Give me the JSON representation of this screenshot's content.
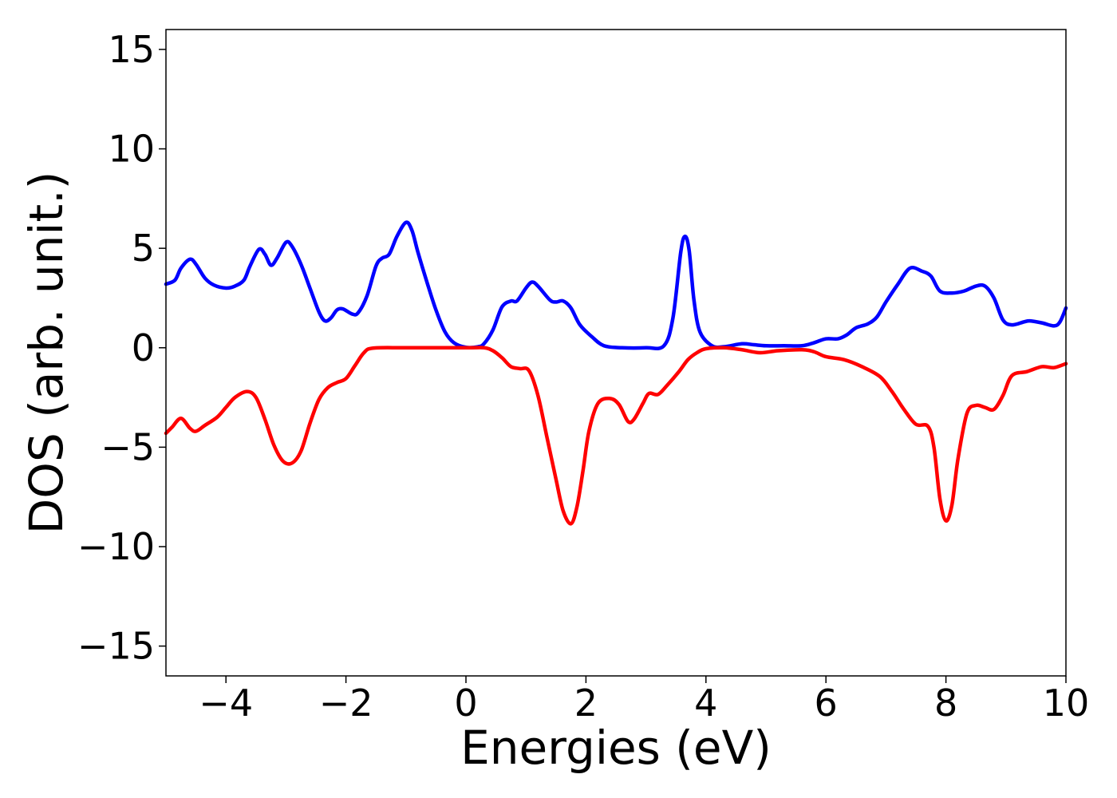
{
  "chart_data": {
    "type": "line",
    "title": "",
    "xlabel": "Energies (eV)",
    "ylabel": "DOS (arb. unit.)",
    "xlim": [
      -5,
      10
    ],
    "ylim": [
      -16.5,
      16
    ],
    "grid": false,
    "legend": "none",
    "x_ticks": [
      -4,
      -2,
      0,
      2,
      4,
      6,
      8,
      10
    ],
    "x_tick_labels": [
      "−4",
      "−2",
      "0",
      "2",
      "4",
      "6",
      "8",
      "10"
    ],
    "y_ticks": [
      -15,
      -10,
      -5,
      0,
      5,
      10,
      15
    ],
    "y_tick_labels": [
      "−15",
      "−10",
      "−5",
      "0",
      "5",
      "10",
      "15"
    ],
    "series": [
      {
        "color": "#0000ff",
        "points": [
          [
            -5.0,
            3.2
          ],
          [
            -4.85,
            3.4
          ],
          [
            -4.75,
            4.0
          ],
          [
            -4.6,
            4.45
          ],
          [
            -4.5,
            4.2
          ],
          [
            -4.35,
            3.5
          ],
          [
            -4.2,
            3.15
          ],
          [
            -4.0,
            3.0
          ],
          [
            -3.85,
            3.1
          ],
          [
            -3.7,
            3.4
          ],
          [
            -3.6,
            4.1
          ],
          [
            -3.45,
            4.95
          ],
          [
            -3.35,
            4.7
          ],
          [
            -3.25,
            4.15
          ],
          [
            -3.15,
            4.5
          ],
          [
            -3.0,
            5.3
          ],
          [
            -2.9,
            5.1
          ],
          [
            -2.75,
            4.2
          ],
          [
            -2.6,
            3.0
          ],
          [
            -2.45,
            1.8
          ],
          [
            -2.35,
            1.35
          ],
          [
            -2.25,
            1.5
          ],
          [
            -2.15,
            1.9
          ],
          [
            -2.05,
            1.95
          ],
          [
            -1.9,
            1.7
          ],
          [
            -1.8,
            1.75
          ],
          [
            -1.65,
            2.6
          ],
          [
            -1.5,
            4.1
          ],
          [
            -1.4,
            4.5
          ],
          [
            -1.28,
            4.7
          ],
          [
            -1.15,
            5.6
          ],
          [
            -1.0,
            6.3
          ],
          [
            -0.9,
            5.9
          ],
          [
            -0.8,
            4.8
          ],
          [
            -0.65,
            3.3
          ],
          [
            -0.5,
            1.9
          ],
          [
            -0.35,
            0.8
          ],
          [
            -0.2,
            0.25
          ],
          [
            0.0,
            0.02
          ],
          [
            0.2,
            0.05
          ],
          [
            0.3,
            0.2
          ],
          [
            0.45,
            0.9
          ],
          [
            0.6,
            2.05
          ],
          [
            0.75,
            2.35
          ],
          [
            0.85,
            2.35
          ],
          [
            1.0,
            3.0
          ],
          [
            1.1,
            3.3
          ],
          [
            1.2,
            3.1
          ],
          [
            1.4,
            2.4
          ],
          [
            1.5,
            2.3
          ],
          [
            1.62,
            2.35
          ],
          [
            1.75,
            2.0
          ],
          [
            1.9,
            1.15
          ],
          [
            2.1,
            0.55
          ],
          [
            2.3,
            0.1
          ],
          [
            2.6,
            0.0
          ],
          [
            3.0,
            0.0
          ],
          [
            3.3,
            0.1
          ],
          [
            3.45,
            1.5
          ],
          [
            3.58,
            4.8
          ],
          [
            3.65,
            5.6
          ],
          [
            3.72,
            4.9
          ],
          [
            3.8,
            2.4
          ],
          [
            3.9,
            0.8
          ],
          [
            4.1,
            0.1
          ],
          [
            4.3,
            0.05
          ],
          [
            4.6,
            0.2
          ],
          [
            4.8,
            0.15
          ],
          [
            5.0,
            0.1
          ],
          [
            5.3,
            0.1
          ],
          [
            5.6,
            0.1
          ],
          [
            5.8,
            0.25
          ],
          [
            6.0,
            0.45
          ],
          [
            6.2,
            0.45
          ],
          [
            6.35,
            0.65
          ],
          [
            6.5,
            1.0
          ],
          [
            6.7,
            1.2
          ],
          [
            6.85,
            1.55
          ],
          [
            7.0,
            2.3
          ],
          [
            7.2,
            3.2
          ],
          [
            7.4,
            4.0
          ],
          [
            7.6,
            3.85
          ],
          [
            7.75,
            3.6
          ],
          [
            7.9,
            2.85
          ],
          [
            8.1,
            2.75
          ],
          [
            8.3,
            2.85
          ],
          [
            8.5,
            3.1
          ],
          [
            8.65,
            3.1
          ],
          [
            8.8,
            2.5
          ],
          [
            8.95,
            1.4
          ],
          [
            9.1,
            1.15
          ],
          [
            9.3,
            1.3
          ],
          [
            9.4,
            1.35
          ],
          [
            9.6,
            1.25
          ],
          [
            9.8,
            1.1
          ],
          [
            9.9,
            1.3
          ],
          [
            10.0,
            2.0
          ]
        ]
      },
      {
        "color": "#ff0000",
        "points": [
          [
            -5.0,
            -4.3
          ],
          [
            -4.9,
            -4.0
          ],
          [
            -4.75,
            -3.55
          ],
          [
            -4.6,
            -4.05
          ],
          [
            -4.5,
            -4.2
          ],
          [
            -4.35,
            -3.9
          ],
          [
            -4.15,
            -3.5
          ],
          [
            -4.0,
            -3.0
          ],
          [
            -3.85,
            -2.5
          ],
          [
            -3.65,
            -2.2
          ],
          [
            -3.5,
            -2.5
          ],
          [
            -3.35,
            -3.6
          ],
          [
            -3.2,
            -4.9
          ],
          [
            -3.05,
            -5.7
          ],
          [
            -2.9,
            -5.8
          ],
          [
            -2.75,
            -5.2
          ],
          [
            -2.6,
            -3.8
          ],
          [
            -2.45,
            -2.6
          ],
          [
            -2.3,
            -2.0
          ],
          [
            -2.15,
            -1.75
          ],
          [
            -2.0,
            -1.55
          ],
          [
            -1.85,
            -0.9
          ],
          [
            -1.7,
            -0.25
          ],
          [
            -1.55,
            -0.02
          ],
          [
            -1.0,
            0.0
          ],
          [
            0.0,
            0.0
          ],
          [
            0.3,
            0.0
          ],
          [
            0.45,
            -0.15
          ],
          [
            0.6,
            -0.5
          ],
          [
            0.75,
            -0.95
          ],
          [
            0.9,
            -1.05
          ],
          [
            1.05,
            -1.15
          ],
          [
            1.2,
            -2.4
          ],
          [
            1.35,
            -4.5
          ],
          [
            1.5,
            -6.6
          ],
          [
            1.62,
            -8.2
          ],
          [
            1.75,
            -8.85
          ],
          [
            1.85,
            -8.0
          ],
          [
            1.95,
            -6.2
          ],
          [
            2.05,
            -4.2
          ],
          [
            2.2,
            -2.8
          ],
          [
            2.4,
            -2.55
          ],
          [
            2.55,
            -2.85
          ],
          [
            2.7,
            -3.7
          ],
          [
            2.8,
            -3.6
          ],
          [
            2.95,
            -2.8
          ],
          [
            3.05,
            -2.3
          ],
          [
            3.2,
            -2.35
          ],
          [
            3.35,
            -1.9
          ],
          [
            3.55,
            -1.2
          ],
          [
            3.7,
            -0.6
          ],
          [
            3.85,
            -0.25
          ],
          [
            4.0,
            -0.05
          ],
          [
            4.3,
            0.0
          ],
          [
            4.6,
            -0.1
          ],
          [
            4.9,
            -0.25
          ],
          [
            5.2,
            -0.15
          ],
          [
            5.6,
            -0.1
          ],
          [
            5.8,
            -0.2
          ],
          [
            6.0,
            -0.45
          ],
          [
            6.3,
            -0.6
          ],
          [
            6.6,
            -0.95
          ],
          [
            6.9,
            -1.45
          ],
          [
            7.1,
            -2.2
          ],
          [
            7.3,
            -3.1
          ],
          [
            7.5,
            -3.85
          ],
          [
            7.7,
            -3.95
          ],
          [
            7.8,
            -5.0
          ],
          [
            7.9,
            -7.6
          ],
          [
            8.0,
            -8.7
          ],
          [
            8.1,
            -7.9
          ],
          [
            8.2,
            -5.6
          ],
          [
            8.35,
            -3.3
          ],
          [
            8.5,
            -2.9
          ],
          [
            8.65,
            -3.0
          ],
          [
            8.8,
            -3.1
          ],
          [
            8.95,
            -2.4
          ],
          [
            9.1,
            -1.4
          ],
          [
            9.35,
            -1.2
          ],
          [
            9.6,
            -0.95
          ],
          [
            9.8,
            -1.0
          ],
          [
            10.0,
            -0.8
          ]
        ]
      }
    ]
  }
}
